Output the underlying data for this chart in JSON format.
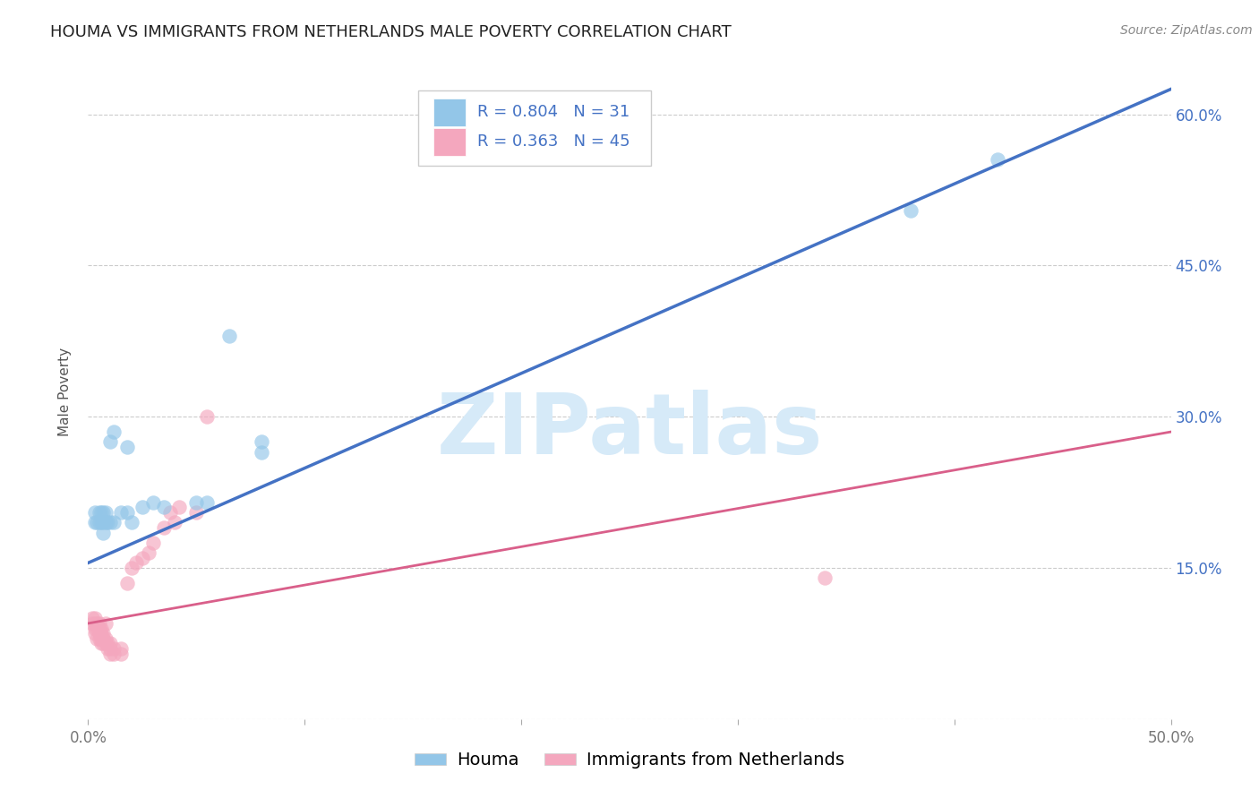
{
  "title": "HOUMA VS IMMIGRANTS FROM NETHERLANDS MALE POVERTY CORRELATION CHART",
  "source": "Source: ZipAtlas.com",
  "ylabel": "Male Poverty",
  "xlim": [
    0.0,
    0.5
  ],
  "ylim": [
    0.0,
    0.65
  ],
  "x_tick_positions": [
    0.0,
    0.1,
    0.2,
    0.3,
    0.4,
    0.5
  ],
  "x_tick_labels": [
    "0.0%",
    "",
    "",
    "",
    "",
    "50.0%"
  ],
  "y_tick_positions": [
    0.0,
    0.15,
    0.3,
    0.45,
    0.6
  ],
  "y_tick_labels_right": [
    "",
    "15.0%",
    "30.0%",
    "45.0%",
    "60.0%"
  ],
  "houma_R": 0.804,
  "houma_N": 31,
  "netherlands_R": 0.363,
  "netherlands_N": 45,
  "houma_color": "#93c6e8",
  "houma_line_color": "#4472c4",
  "netherlands_color": "#f4a7be",
  "netherlands_line_color": "#d95f8a",
  "right_tick_color": "#4472c4",
  "watermark_color": "#d6eaf8",
  "houma_points": [
    [
      0.003,
      0.195
    ],
    [
      0.003,
      0.205
    ],
    [
      0.004,
      0.195
    ],
    [
      0.005,
      0.195
    ],
    [
      0.005,
      0.205
    ],
    [
      0.006,
      0.195
    ],
    [
      0.006,
      0.205
    ],
    [
      0.007,
      0.185
    ],
    [
      0.007,
      0.195
    ],
    [
      0.007,
      0.205
    ],
    [
      0.008,
      0.195
    ],
    [
      0.008,
      0.205
    ],
    [
      0.009,
      0.195
    ],
    [
      0.01,
      0.195
    ],
    [
      0.012,
      0.195
    ],
    [
      0.015,
      0.205
    ],
    [
      0.018,
      0.205
    ],
    [
      0.02,
      0.195
    ],
    [
      0.025,
      0.21
    ],
    [
      0.01,
      0.275
    ],
    [
      0.018,
      0.27
    ],
    [
      0.03,
      0.215
    ],
    [
      0.035,
      0.21
    ],
    [
      0.05,
      0.215
    ],
    [
      0.055,
      0.215
    ],
    [
      0.012,
      0.285
    ],
    [
      0.065,
      0.38
    ],
    [
      0.08,
      0.265
    ],
    [
      0.08,
      0.275
    ],
    [
      0.38,
      0.505
    ],
    [
      0.42,
      0.555
    ]
  ],
  "netherlands_points": [
    [
      0.002,
      0.095
    ],
    [
      0.002,
      0.1
    ],
    [
      0.003,
      0.085
    ],
    [
      0.003,
      0.09
    ],
    [
      0.003,
      0.095
    ],
    [
      0.003,
      0.1
    ],
    [
      0.004,
      0.08
    ],
    [
      0.004,
      0.09
    ],
    [
      0.004,
      0.095
    ],
    [
      0.005,
      0.08
    ],
    [
      0.005,
      0.085
    ],
    [
      0.005,
      0.09
    ],
    [
      0.005,
      0.095
    ],
    [
      0.006,
      0.075
    ],
    [
      0.006,
      0.08
    ],
    [
      0.006,
      0.085
    ],
    [
      0.006,
      0.09
    ],
    [
      0.007,
      0.075
    ],
    [
      0.007,
      0.08
    ],
    [
      0.007,
      0.085
    ],
    [
      0.008,
      0.075
    ],
    [
      0.008,
      0.08
    ],
    [
      0.008,
      0.095
    ],
    [
      0.009,
      0.07
    ],
    [
      0.009,
      0.075
    ],
    [
      0.01,
      0.065
    ],
    [
      0.01,
      0.07
    ],
    [
      0.01,
      0.075
    ],
    [
      0.012,
      0.065
    ],
    [
      0.012,
      0.07
    ],
    [
      0.015,
      0.065
    ],
    [
      0.015,
      0.07
    ],
    [
      0.018,
      0.135
    ],
    [
      0.02,
      0.15
    ],
    [
      0.022,
      0.155
    ],
    [
      0.025,
      0.16
    ],
    [
      0.028,
      0.165
    ],
    [
      0.03,
      0.175
    ],
    [
      0.035,
      0.19
    ],
    [
      0.038,
      0.205
    ],
    [
      0.04,
      0.195
    ],
    [
      0.042,
      0.21
    ],
    [
      0.05,
      0.205
    ],
    [
      0.055,
      0.3
    ],
    [
      0.34,
      0.14
    ]
  ],
  "title_fontsize": 13,
  "label_fontsize": 11,
  "tick_fontsize": 12,
  "legend_fontsize": 14
}
